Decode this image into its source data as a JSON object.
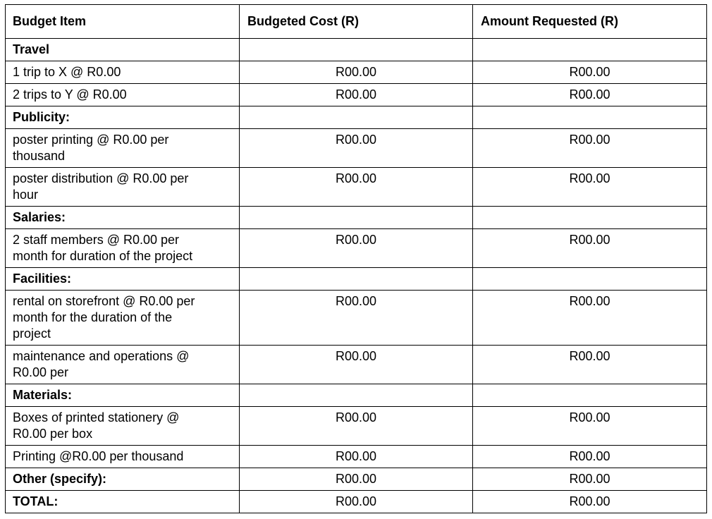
{
  "headers": [
    "Budget Item",
    "Budgeted Cost (R)",
    "Amount Requested (R)"
  ],
  "rows": [
    {
      "label": "Travel",
      "bold": true,
      "budgeted": "",
      "requested": ""
    },
    {
      "label": "1 trip to X @ R0.00",
      "bold": false,
      "budgeted": "R00.00",
      "requested": "R00.00"
    },
    {
      "label": "2 trips to Y @ R0.00",
      "bold": false,
      "budgeted": "R00.00",
      "requested": "R00.00"
    },
    {
      "label": "Publicity:",
      "bold": true,
      "budgeted": "",
      "requested": ""
    },
    {
      "label": "poster printing @ R0.00 per\nthousand",
      "bold": false,
      "budgeted": "R00.00",
      "requested": "R00.00"
    },
    {
      "label": "poster distribution @ R0.00 per\nhour",
      "bold": false,
      "budgeted": "R00.00",
      "requested": "R00.00"
    },
    {
      "label": "Salaries:",
      "bold": true,
      "budgeted": "",
      "requested": ""
    },
    {
      "label": "2 staff members @ R0.00 per\nmonth for duration of the project",
      "bold": false,
      "budgeted": "R00.00",
      "requested": "R00.00"
    },
    {
      "label": "Facilities:",
      "bold": true,
      "budgeted": "",
      "requested": ""
    },
    {
      "label": "rental on storefront @ R0.00 per\nmonth for the duration of the\nproject",
      "bold": false,
      "budgeted": "R00.00",
      "requested": "R00.00"
    },
    {
      "label": "maintenance and operations @\nR0.00 per",
      "bold": false,
      "budgeted": "R00.00",
      "requested": "R00.00"
    },
    {
      "label": "Materials:",
      "bold": true,
      "budgeted": "",
      "requested": ""
    },
    {
      "label": "Boxes of printed stationery @\nR0.00 per box",
      "bold": false,
      "budgeted": "R00.00",
      "requested": "R00.00"
    },
    {
      "label": "Printing @R0.00 per thousand",
      "bold": false,
      "budgeted": "R00.00",
      "requested": "R00.00"
    },
    {
      "label": "Other (specify):",
      "bold": true,
      "budgeted": "R00.00",
      "requested": "R00.00"
    },
    {
      "label": "TOTAL:",
      "bold": true,
      "budgeted": "R00.00",
      "requested": "R00.00"
    }
  ]
}
